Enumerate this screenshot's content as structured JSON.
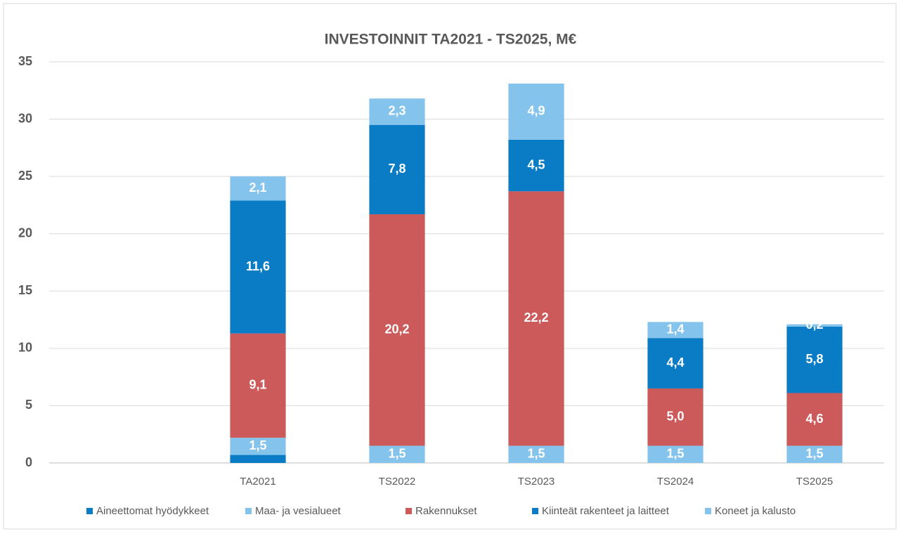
{
  "chart_data": {
    "type": "stacked_bar",
    "title": "INVESTOINNIT TA2021 - TS2025, M€",
    "categories": [
      null,
      "TA2021",
      "TS2022",
      "TS2023",
      "TS2024",
      "TS2025"
    ],
    "series": [
      {
        "name": "Aineettomat hyödykkeet",
        "color": "#0a7cc6",
        "values": [
          null,
          0.7,
          0,
          0,
          0,
          0
        ]
      },
      {
        "name": "Maa- ja vesialueet",
        "color": "#84c4ec",
        "values": [
          null,
          1.5,
          1.5,
          1.5,
          1.5,
          1.5
        ],
        "value_labels": [
          null,
          "1,5",
          "1,5",
          "1,5",
          "1,5",
          "1,5"
        ]
      },
      {
        "name": "Rakennukset",
        "color": "#cd5a5a",
        "values": [
          null,
          9.1,
          20.2,
          22.2,
          5.0,
          4.6
        ],
        "value_labels": [
          null,
          "9,1",
          "20,2",
          "22,2",
          "5,0",
          "4,6"
        ]
      },
      {
        "name": "Kiinteät rakenteet ja laitteet",
        "color": "#0a7cc6",
        "values": [
          null,
          11.6,
          7.8,
          4.5,
          4.4,
          5.8
        ],
        "value_labels": [
          null,
          "11,6",
          "7,8",
          "4,5",
          "4,4",
          "5,8"
        ]
      },
      {
        "name": "Koneet ja kalusto",
        "color": "#84c4ec",
        "values": [
          null,
          2.1,
          2.3,
          4.9,
          1.4,
          0.2
        ],
        "value_labels": [
          null,
          "2,1",
          "2,3",
          "4,9",
          "1,4",
          "0,2"
        ]
      }
    ],
    "ylim": [
      0,
      35
    ],
    "yticks": [
      0,
      5,
      10,
      15,
      20,
      25,
      30,
      35
    ],
    "grid": true,
    "legend": "bottom"
  }
}
